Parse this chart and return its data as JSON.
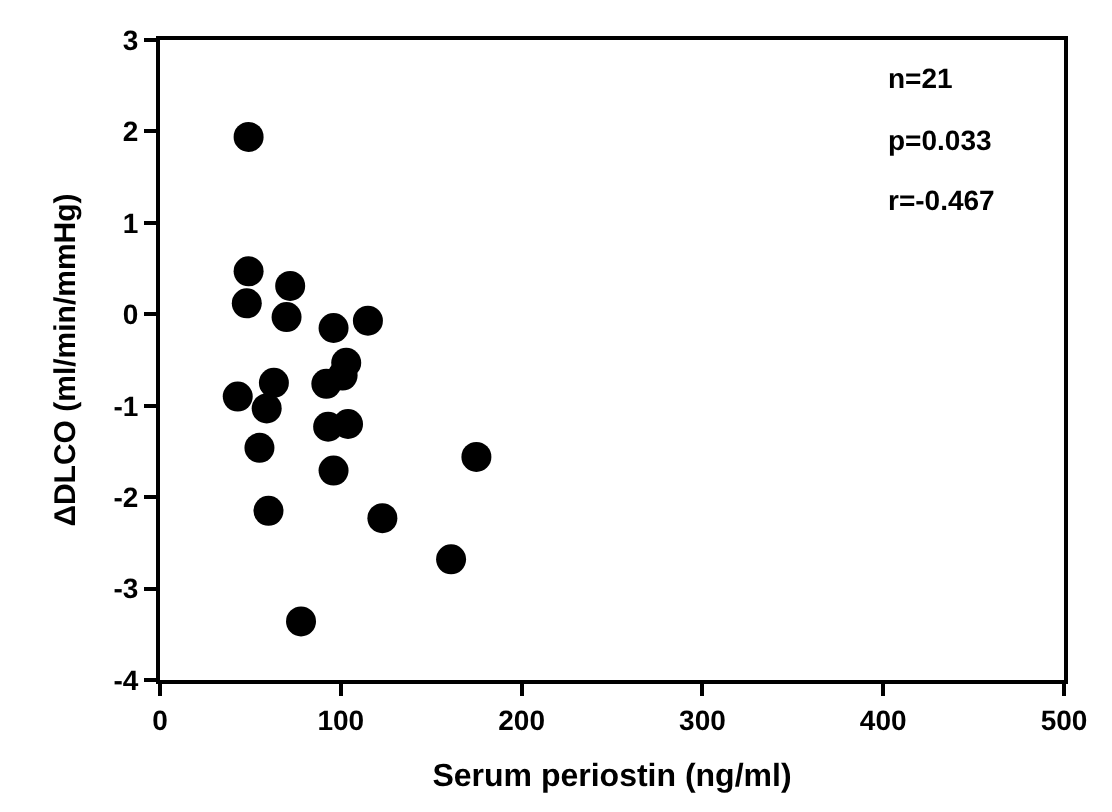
{
  "chart_data": {
    "type": "scatter",
    "xlabel": "Serum periostin (ng/ml)",
    "ylabel": "ΔDLCO (ml/min/mmHg)",
    "annotations": [
      "n=21",
      "p=0.033",
      "r=-0.467"
    ],
    "x": [
      49,
      49,
      48,
      72,
      70,
      96,
      115,
      103,
      101,
      92,
      63,
      43,
      59,
      93,
      104,
      55,
      96,
      175,
      60,
      123,
      161,
      78
    ],
    "series": [
      {
        "color": "#000000",
        "values": [
          1.94,
          0.47,
          0.12,
          0.31,
          -0.03,
          -0.15,
          -0.07,
          -0.53,
          -0.67,
          -0.76,
          -0.75,
          -0.9,
          -1.03,
          -1.23,
          -1.2,
          -1.46,
          -1.71,
          -1.56,
          -2.15,
          -2.23,
          -2.68,
          -3.36
        ]
      }
    ],
    "xlim": [
      0,
      500
    ],
    "xticks": [
      0,
      100,
      200,
      300,
      400,
      500
    ],
    "ylim": [
      -4,
      3
    ],
    "yticks": [
      -4,
      -3,
      -2,
      -1,
      0,
      1,
      2,
      3
    ],
    "marker": "circle"
  }
}
